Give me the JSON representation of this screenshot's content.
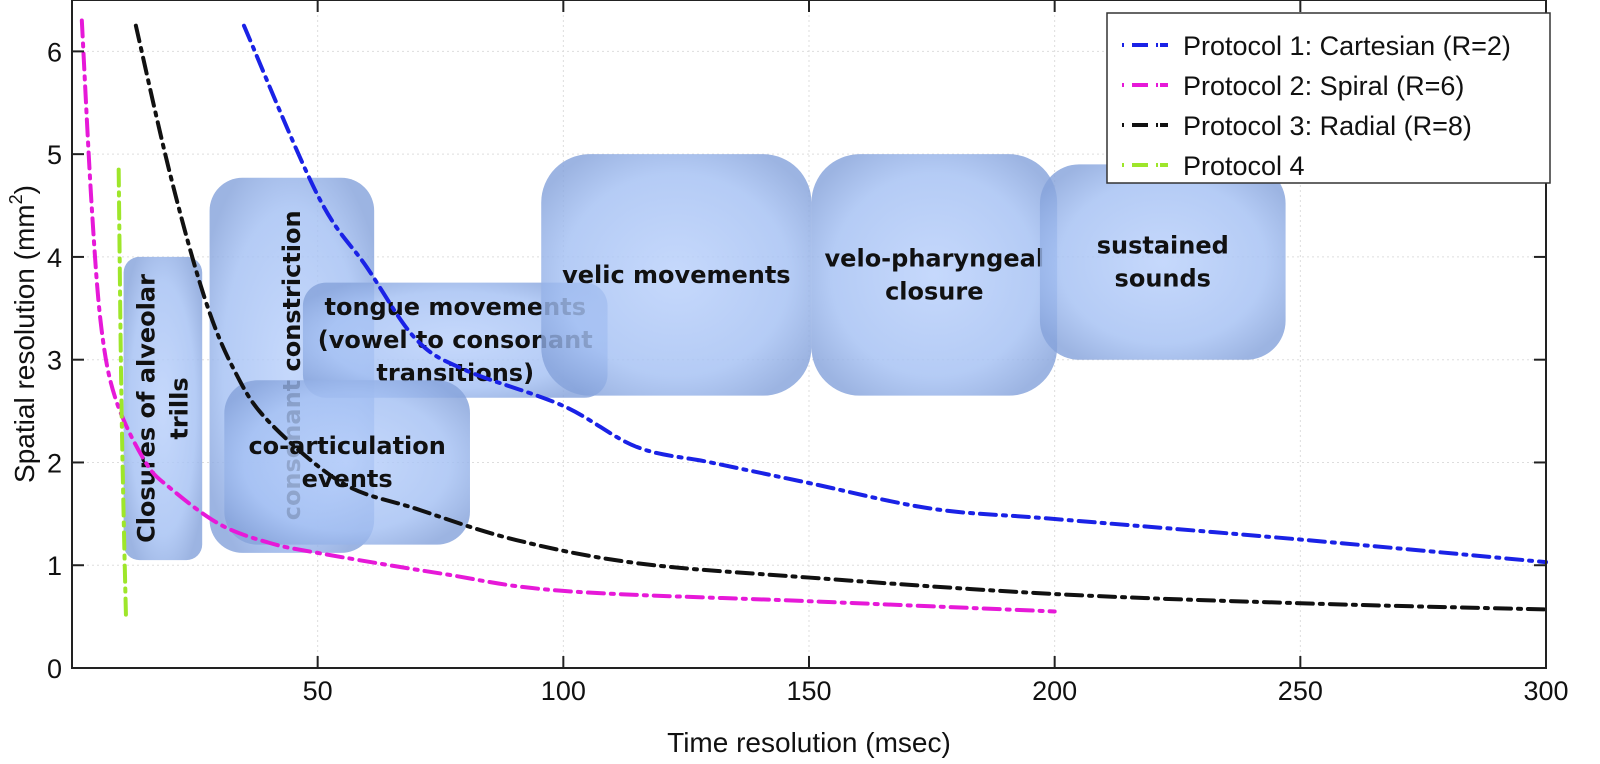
{
  "chart_data": {
    "type": "line",
    "title": "",
    "xlabel": "Time resolution (msec)",
    "ylabel": "Spatial resolution (mm²)",
    "ylabel_base": "Spatial resolution (mm",
    "ylabel_sup": "2",
    "ylabel_close": ")",
    "xlim": [
      0,
      300
    ],
    "ylim": [
      0,
      6.5
    ],
    "xticks": [
      50,
      100,
      150,
      200,
      250,
      300
    ],
    "yticks": [
      0,
      1,
      2,
      3,
      4,
      5,
      6
    ],
    "grid": true,
    "legend_position": "top-right",
    "series": [
      {
        "name": "Protocol 1: Cartesian (R=2)",
        "color": "#1a22e6",
        "x": [
          35,
          50,
          60,
          70,
          80,
          100,
          115,
          130,
          150,
          175,
          200,
          250,
          300
        ],
        "y": [
          6.25,
          4.6,
          3.9,
          3.2,
          2.9,
          2.55,
          2.15,
          2.0,
          1.8,
          1.55,
          1.45,
          1.25,
          1.03
        ]
      },
      {
        "name": "Protocol 2: Spiral (R=6)",
        "color": "#e619d8",
        "x": [
          2,
          4,
          6,
          9,
          15,
          20,
          30,
          40,
          50,
          75,
          100,
          150,
          200
        ],
        "y": [
          6.3,
          4.5,
          3.3,
          2.6,
          2.0,
          1.75,
          1.4,
          1.22,
          1.12,
          0.92,
          0.75,
          0.65,
          0.55
        ]
      },
      {
        "name": "Protocol 3: Radial (R=8)",
        "color": "#111111",
        "x": [
          13,
          20,
          27,
          33,
          40,
          55,
          70,
          90,
          115,
          150,
          200,
          250,
          300
        ],
        "y": [
          6.25,
          4.8,
          3.6,
          2.9,
          2.4,
          1.8,
          1.55,
          1.25,
          1.02,
          0.88,
          0.72,
          0.63,
          0.57
        ]
      },
      {
        "name": "Protocol 4",
        "color": "#9ee62a",
        "x": [
          9.5,
          10,
          10.5,
          11
        ],
        "y": [
          4.85,
          2.8,
          1.5,
          0.47
        ]
      }
    ],
    "annotations": [
      {
        "label": [
          "Closures of alveolar",
          "trills"
        ],
        "rotated": true,
        "x": [
          10.5,
          26.5
        ],
        "y": [
          1.05,
          4.0
        ]
      },
      {
        "label": [
          "consonant constriction"
        ],
        "rotated": true,
        "x": [
          28,
          61.5
        ],
        "y": [
          1.12,
          4.77
        ]
      },
      {
        "label": [
          "tongue movements",
          "(vowel to consonant",
          "transitions)"
        ],
        "rotated": false,
        "x": [
          47,
          109
        ],
        "y": [
          2.63,
          3.75
        ]
      },
      {
        "label": [
          "co-articulation",
          "events"
        ],
        "rotated": false,
        "x": [
          31,
          81
        ],
        "y": [
          1.2,
          2.8
        ]
      },
      {
        "label": [
          "velic movements"
        ],
        "rotated": false,
        "x": [
          95.5,
          150.5
        ],
        "y": [
          2.65,
          5.0
        ]
      },
      {
        "label": [
          "velo-pharyngeal",
          "closure"
        ],
        "rotated": false,
        "x": [
          150.5,
          200.5
        ],
        "y": [
          2.65,
          5.0
        ]
      },
      {
        "label": [
          "sustained",
          "sounds"
        ],
        "rotated": false,
        "x": [
          197,
          247
        ],
        "y": [
          3.0,
          4.9
        ]
      }
    ]
  }
}
